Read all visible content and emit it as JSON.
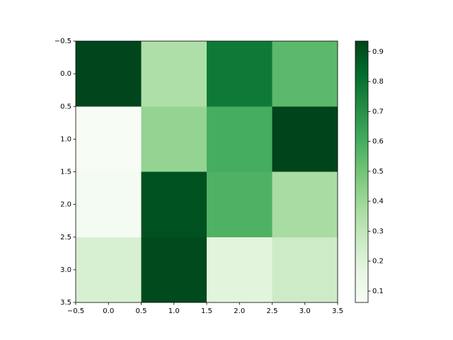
{
  "chart_data": {
    "type": "heatmap",
    "z": [
      [
        0.93,
        0.35,
        0.78,
        0.55
      ],
      [
        0.062,
        0.42,
        0.6,
        0.935
      ],
      [
        0.08,
        0.9,
        0.58,
        0.37
      ],
      [
        0.22,
        0.92,
        0.18,
        0.26
      ]
    ],
    "colormap": [
      "#f7fcf5",
      "#e5f5e0",
      "#c7e9c0",
      "#a1d99b",
      "#74c476",
      "#41ab5d",
      "#238b45",
      "#006d2c",
      "#00441b"
    ],
    "clim": [
      0.062,
      0.935
    ],
    "xlim": [
      -0.5,
      3.5
    ],
    "ylim": [
      3.5,
      -0.5
    ],
    "xticks": [
      {
        "value": -0.5,
        "label": "−0.5"
      },
      {
        "value": 0,
        "label": "0.0"
      },
      0.5,
      {
        "value": 1,
        "label": "1.0"
      },
      1.5,
      {
        "value": 2,
        "label": "2.0"
      },
      2.5,
      {
        "value": 3,
        "label": "3.0"
      },
      3.5
    ],
    "yticks": [
      {
        "value": -0.5,
        "label": "−0.5"
      },
      {
        "value": 0,
        "label": "0.0"
      },
      0.5,
      {
        "value": 1,
        "label": "1.0"
      },
      1.5,
      {
        "value": 2,
        "label": "2.0"
      },
      2.5,
      {
        "value": 3,
        "label": "3.0"
      },
      3.5
    ],
    "cticks": [
      0.1,
      0.2,
      0.3,
      0.4,
      0.5,
      0.6,
      0.7,
      0.8,
      0.9
    ]
  }
}
